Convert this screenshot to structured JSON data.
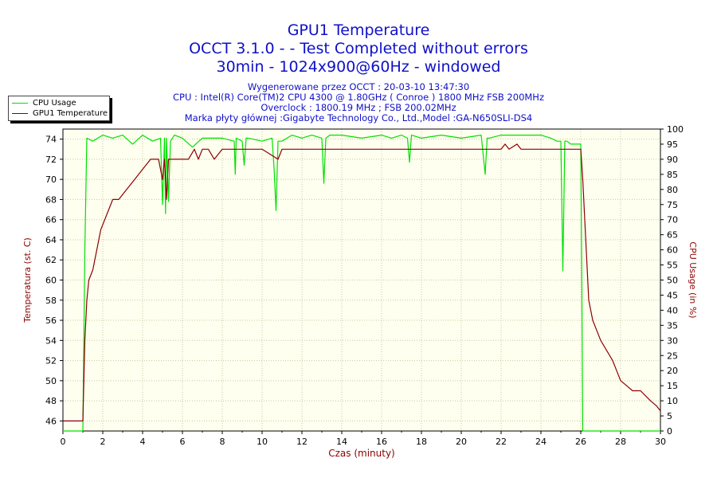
{
  "header": {
    "title": "GPU1 Temperature",
    "line2": "OCCT 3.1.0 -  - Test Completed without errors",
    "line3": "30min - 1024x900@60Hz - windowed",
    "info": [
      "Wygenerowane przez OCCT : 20-03-10 13:47:30",
      "CPU : Intel(R) Core(TM)2 CPU 4300 @ 1.80GHz ( Conroe ) 1800 MHz FSB 200MHz",
      "Overclock : 1800.19 MHz ; FSB 200.02MHz",
      "Marka płyty głównej :Gigabyte Technology Co., Ltd.,Model :GA-N650SLI-DS4"
    ]
  },
  "legend": {
    "items": [
      {
        "label": "CPU Usage",
        "color": "#00e000"
      },
      {
        "label": "GPU1 Temperature",
        "color": "#8b0000"
      }
    ]
  },
  "chart_data": {
    "type": "line",
    "xlabel": "Czas (minuty)",
    "ylabel_left": "Temperatura (st. C)",
    "ylabel_right": "CPU Usage (in %)",
    "xlim": [
      0,
      30
    ],
    "ylim_left": [
      45,
      75
    ],
    "ylim_right": [
      0,
      100
    ],
    "xticks": [
      0,
      2,
      4,
      6,
      8,
      10,
      12,
      14,
      16,
      18,
      20,
      22,
      24,
      26,
      28,
      30
    ],
    "yticks_left": [
      46,
      48,
      50,
      52,
      54,
      56,
      58,
      60,
      62,
      64,
      66,
      68,
      70,
      72,
      74
    ],
    "yticks_right": [
      0,
      5,
      10,
      15,
      20,
      25,
      30,
      35,
      40,
      45,
      50,
      55,
      60,
      65,
      70,
      75,
      80,
      85,
      90,
      95,
      100
    ],
    "grid": true,
    "legend_position": "top-left",
    "background": "#fffff0",
    "series": [
      {
        "name": "CPU Usage",
        "axis": "right",
        "color": "#00e000",
        "x": [
          0,
          0.95,
          1.0,
          1.1,
          1.2,
          1.5,
          2.0,
          2.5,
          3.0,
          3.5,
          4.0,
          4.5,
          4.9,
          5.0,
          5.1,
          5.15,
          5.2,
          5.3,
          5.4,
          5.6,
          6.0,
          6.5,
          7.0,
          8.0,
          8.6,
          8.65,
          8.7,
          9.0,
          9.1,
          9.2,
          9.3,
          10.0,
          10.5,
          10.6,
          10.7,
          10.8,
          11.0,
          11.5,
          12.0,
          12.5,
          13.0,
          13.1,
          13.2,
          13.4,
          14.0,
          15.0,
          16.0,
          16.5,
          17.0,
          17.3,
          17.4,
          17.5,
          18.0,
          19.0,
          20.0,
          21.0,
          21.2,
          21.3,
          21.4,
          22.0,
          23.0,
          24.0,
          24.5,
          24.8,
          25.0,
          25.1,
          25.2,
          25.3,
          25.5,
          25.8,
          26.0,
          26.05,
          26.1,
          30
        ],
        "values": [
          0,
          0,
          0,
          60,
          97,
          96,
          98,
          97,
          98,
          95,
          98,
          96,
          97,
          75,
          97,
          72,
          97,
          76,
          96,
          98,
          97,
          94,
          97,
          97,
          96,
          85,
          97,
          96,
          88,
          97,
          97,
          96,
          97,
          87,
          73,
          96,
          96,
          98,
          97,
          98,
          97,
          82,
          97,
          98,
          98,
          97,
          98,
          97,
          98,
          97,
          89,
          98,
          97,
          98,
          97,
          98,
          85,
          97,
          97,
          98,
          98,
          98,
          97,
          96,
          96,
          53,
          96,
          96,
          95,
          95,
          95,
          50,
          0,
          0
        ]
      },
      {
        "name": "GPU1 Temperature",
        "axis": "left",
        "color": "#8b0000",
        "x": [
          0,
          1.0,
          1.1,
          1.2,
          1.3,
          1.5,
          1.7,
          1.9,
          2.1,
          2.3,
          2.5,
          2.8,
          3.2,
          3.6,
          4.0,
          4.2,
          4.4,
          4.6,
          4.8,
          5.0,
          5.1,
          5.2,
          5.3,
          5.5,
          6.0,
          6.3,
          6.6,
          6.8,
          7.0,
          7.3,
          7.6,
          8.0,
          9.0,
          10.0,
          10.8,
          10.9,
          11.0,
          11.3,
          11.6,
          12.0,
          14.0,
          16.0,
          18.0,
          20.0,
          21.0,
          21.5,
          22.0,
          22.2,
          22.4,
          22.8,
          23.0,
          23.5,
          24.0,
          25.0,
          25.5,
          26.0,
          26.1,
          26.2,
          26.3,
          26.4,
          26.5,
          26.6,
          26.8,
          27.0,
          27.3,
          27.6,
          27.8,
          28.0,
          28.3,
          28.6,
          29.0,
          29.5,
          29.8,
          30.0
        ],
        "values": [
          46,
          46,
          54,
          58,
          60,
          61,
          63,
          65,
          66,
          67,
          68,
          68,
          69,
          70,
          71,
          71.5,
          72,
          72,
          72,
          70,
          72,
          68,
          72,
          72,
          72,
          72,
          73,
          72,
          73,
          73,
          72,
          73,
          73,
          73,
          72,
          72.5,
          73,
          73,
          73,
          73,
          73,
          73,
          73,
          73,
          73,
          73,
          73,
          73.5,
          73,
          73.5,
          73,
          73,
          73,
          73,
          73,
          73,
          70,
          66,
          62,
          58,
          57,
          56,
          55,
          54,
          53,
          52,
          51,
          50,
          49.5,
          49,
          49,
          48,
          47.5,
          47
        ]
      }
    ]
  }
}
